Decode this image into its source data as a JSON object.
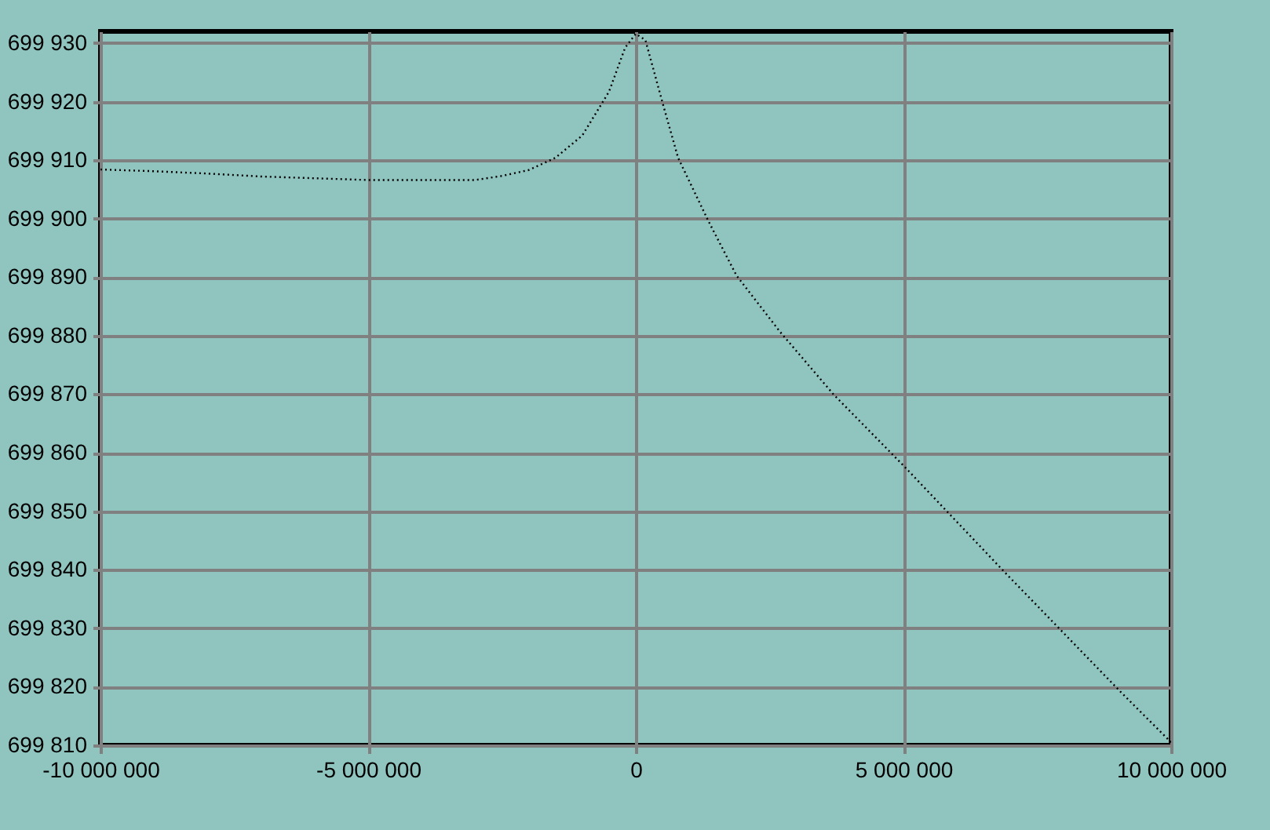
{
  "chart_data": {
    "type": "line",
    "x": [
      -10000000,
      -9000000,
      -8000000,
      -7000000,
      -6000000,
      -5000000,
      -4000000,
      -3000000,
      -2500000,
      -2000000,
      -1500000,
      -1000000,
      -500000,
      -200000,
      0,
      180000,
      500000,
      790000,
      1350000,
      1880000,
      2700000,
      3700000,
      5000000,
      6920000,
      9060000,
      10000000
    ],
    "series": [
      {
        "color": "#000000",
        "values": [
          699908.4,
          699908.1,
          699907.7,
          699907.2,
          699906.9,
          699906.6,
          699906.6,
          699906.6,
          699907.3,
          699908.3,
          699910.4,
          699914.2,
          699921.7,
          699929.2,
          699931.6,
          699930.5,
          699919.8,
          699910.4,
          699899.7,
          699890.3,
          699880.6,
          699869.9,
          699857.8,
          699839.3,
          699819.1,
          699810.5
        ]
      }
    ],
    "xlim": [
      -10000000,
      10000000
    ],
    "ylim": [
      699810,
      699932
    ],
    "xticks": [
      {
        "value": -10000000,
        "label": "-10 000 000"
      },
      {
        "value": -5000000,
        "label": "-5 000 000"
      },
      {
        "value": 0,
        "label": "0"
      },
      {
        "value": 5000000,
        "label": "5 000 000"
      },
      {
        "value": 10000000,
        "label": "10 000 000"
      }
    ],
    "yticks": [
      {
        "value": 699810,
        "label": "699 810"
      },
      {
        "value": 699820,
        "label": "699 820"
      },
      {
        "value": 699830,
        "label": "699 830"
      },
      {
        "value": 699840,
        "label": "699 840"
      },
      {
        "value": 699850,
        "label": "699 850"
      },
      {
        "value": 699860,
        "label": "699 860"
      },
      {
        "value": 699870,
        "label": "699 870"
      },
      {
        "value": 699880,
        "label": "699 880"
      },
      {
        "value": 699890,
        "label": "699 890"
      },
      {
        "value": 699900,
        "label": "699 900"
      },
      {
        "value": 699910,
        "label": "699 910"
      },
      {
        "value": 699920,
        "label": "699 920"
      },
      {
        "value": 699930,
        "label": "699 930"
      }
    ],
    "grid": true,
    "marker": "none",
    "line_style": "dotted"
  }
}
